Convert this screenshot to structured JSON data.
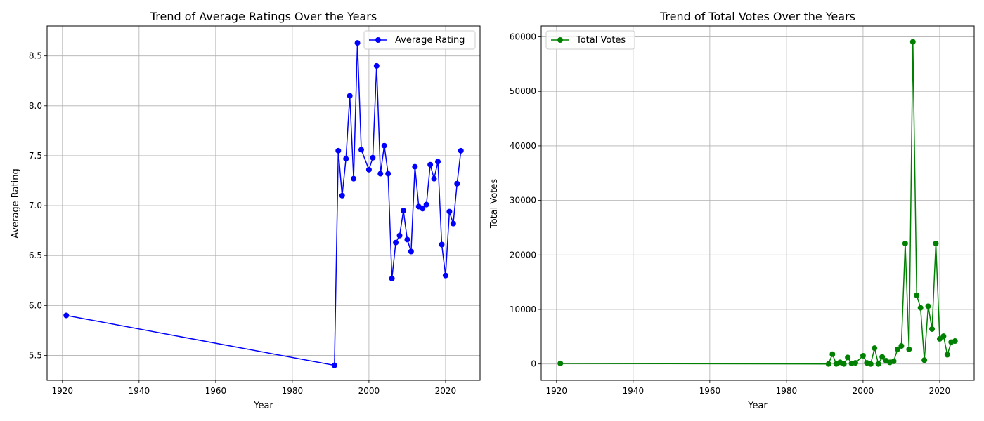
{
  "chart_data": [
    {
      "type": "line",
      "title": "Trend of Average Ratings Over the Years",
      "xlabel": "Year",
      "ylabel": "Average Rating",
      "xlim": [
        1916,
        2029
      ],
      "ylim": [
        5.25,
        8.8
      ],
      "xticks": [
        1920,
        1940,
        1960,
        1980,
        2000,
        2020
      ],
      "yticks": [
        5.5,
        6.0,
        6.5,
        7.0,
        7.5,
        8.0,
        8.5
      ],
      "ytick_labels": [
        "5.5",
        "6.0",
        "6.5",
        "7.0",
        "7.5",
        "8.0",
        "8.5"
      ],
      "grid": true,
      "legend": "upper right",
      "color": "#0000ff",
      "marker": "circle",
      "series": [
        {
          "name": "Average Rating",
          "x": [
            1921,
            1991,
            1992,
            1993,
            1994,
            1995,
            1996,
            1997,
            1998,
            2000,
            2001,
            2002,
            2003,
            2004,
            2005,
            2006,
            2007,
            2008,
            2009,
            2010,
            2011,
            2012,
            2013,
            2014,
            2015,
            2016,
            2017,
            2018,
            2019,
            2020,
            2021,
            2022,
            2023,
            2024
          ],
          "y": [
            5.9,
            5.4,
            7.55,
            7.1,
            7.47,
            8.1,
            7.27,
            8.63,
            7.56,
            7.36,
            7.48,
            8.4,
            7.32,
            7.6,
            7.32,
            6.27,
            6.63,
            6.7,
            6.95,
            6.66,
            6.54,
            7.39,
            6.99,
            6.97,
            7.01,
            7.41,
            7.27,
            7.44,
            6.61,
            6.3,
            6.94,
            6.82,
            7.22,
            7.55
          ]
        }
      ]
    },
    {
      "type": "line",
      "title": "Trend of Total Votes Over the Years",
      "xlabel": "Year",
      "ylabel": "Total Votes",
      "xlim": [
        1916,
        2029
      ],
      "ylim": [
        -3000,
        62000
      ],
      "xticks": [
        1920,
        1940,
        1960,
        1980,
        2000,
        2020
      ],
      "yticks": [
        0,
        10000,
        20000,
        30000,
        40000,
        50000,
        60000
      ],
      "ytick_labels": [
        "0",
        "10000",
        "20000",
        "30000",
        "40000",
        "50000",
        "60000"
      ],
      "grid": true,
      "legend": "upper left",
      "color": "#008000",
      "marker": "circle",
      "series": [
        {
          "name": "Total Votes",
          "x": [
            1921,
            1991,
            1992,
            1993,
            1994,
            1995,
            1996,
            1997,
            1998,
            2000,
            2001,
            2002,
            2003,
            2004,
            2005,
            2006,
            2007,
            2008,
            2009,
            2010,
            2011,
            2012,
            2013,
            2014,
            2015,
            2016,
            2017,
            2018,
            2019,
            2020,
            2021,
            2022,
            2023,
            2024
          ],
          "y": [
            100,
            0,
            1800,
            0,
            300,
            0,
            1200,
            100,
            200,
            1500,
            200,
            0,
            2900,
            0,
            1300,
            600,
            300,
            500,
            2700,
            3300,
            22100,
            2700,
            59100,
            12600,
            10300,
            700,
            10600,
            6400,
            22100,
            4600,
            5100,
            1700,
            4000,
            4200
          ]
        }
      ]
    }
  ]
}
